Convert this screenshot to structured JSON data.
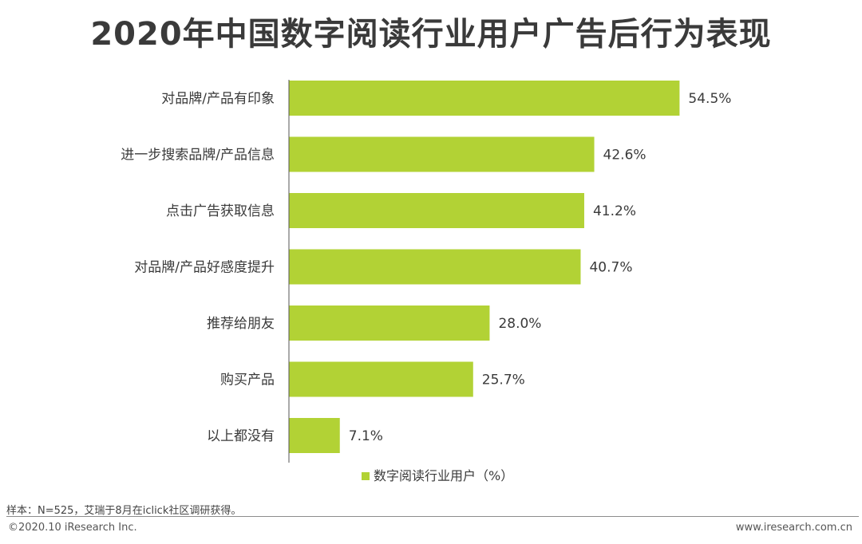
{
  "header": {
    "title": "2020年中国数字阅读行业用户广告后行为表现"
  },
  "chart_data": {
    "type": "bar",
    "orientation": "horizontal",
    "categories": [
      "对品牌/产品有印象",
      "进一步搜索品牌/产品信息",
      "点击广告获取信息",
      "对品牌/产品好感度提升",
      "推荐给朋友",
      "购买产品",
      "以上都没有"
    ],
    "series": [
      {
        "name": "数字阅读行业用户（%）",
        "values": [
          54.5,
          42.6,
          41.2,
          40.7,
          28.0,
          25.7,
          7.1
        ],
        "color": "#b2d235"
      }
    ],
    "value_labels": [
      "54.5%",
      "42.6%",
      "41.2%",
      "40.7%",
      "28.0%",
      "25.7%",
      "7.1%"
    ],
    "xlim": [
      0,
      60
    ],
    "grid": false,
    "legend_position": "bottom-center"
  },
  "footer": {
    "note": "样本：N=525，艾瑞于8月在iclick社区调研获得。",
    "copyright": "©2020.10 iResearch Inc.",
    "website": "www.iresearch.com.cn"
  }
}
